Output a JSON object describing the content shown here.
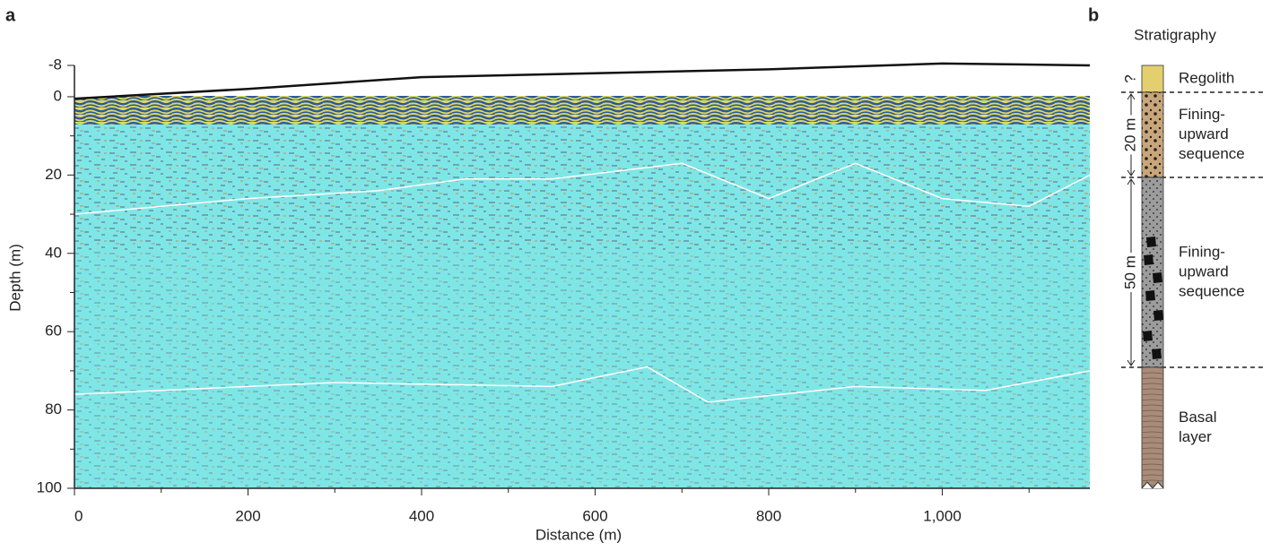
{
  "chart_data": {
    "type": "line",
    "panel_label": "a",
    "x_label": "Distance (m)",
    "y_label": "Depth (m)",
    "xlim": [
      0,
      1170
    ],
    "ylim": [
      100,
      -8
    ],
    "xticks": [
      0,
      200,
      400,
      600,
      800,
      {
        "value": 1000,
        "label": "1,000"
      }
    ],
    "yticks": [
      -8,
      0,
      20,
      40,
      60,
      80,
      100
    ],
    "background": "#7fe6e6",
    "series": [
      {
        "color": "#111111",
        "x": [
          0,
          200,
          400,
          600,
          800,
          1000,
          1170
        ],
        "values": [
          0.5,
          -2,
          -5,
          -6,
          -7,
          -8.5,
          -8
        ]
      },
      {
        "color": "#ffffff",
        "x": [
          0,
          200,
          350,
          450,
          550,
          700,
          800,
          900,
          1000,
          1100,
          1170
        ],
        "values": [
          30,
          26,
          24,
          21,
          21,
          17,
          26,
          17,
          26,
          28,
          20
        ]
      },
      {
        "color": "#ffffff",
        "x": [
          0,
          300,
          550,
          660,
          730,
          900,
          1050,
          1170
        ],
        "values": [
          76,
          73,
          74,
          69,
          78,
          74,
          75,
          70
        ]
      }
    ]
  },
  "stratigraphy": {
    "label": "b",
    "title": "Stratigraphy",
    "uncertain": "?",
    "layers": [
      {
        "lines": [
          "Regolith"
        ],
        "color": "#e4cf6e"
      },
      {
        "lines": [
          "Fining-",
          "upward",
          "sequence"
        ],
        "color": "#c8a67a"
      },
      {
        "lines": [
          "Fining-",
          "upward",
          "sequence"
        ],
        "color": "#9c9c9c"
      },
      {
        "lines": [
          "Basal",
          "layer"
        ],
        "color": "#a98b79"
      }
    ],
    "thickness_labels": [
      "20 m",
      "50 m"
    ]
  }
}
